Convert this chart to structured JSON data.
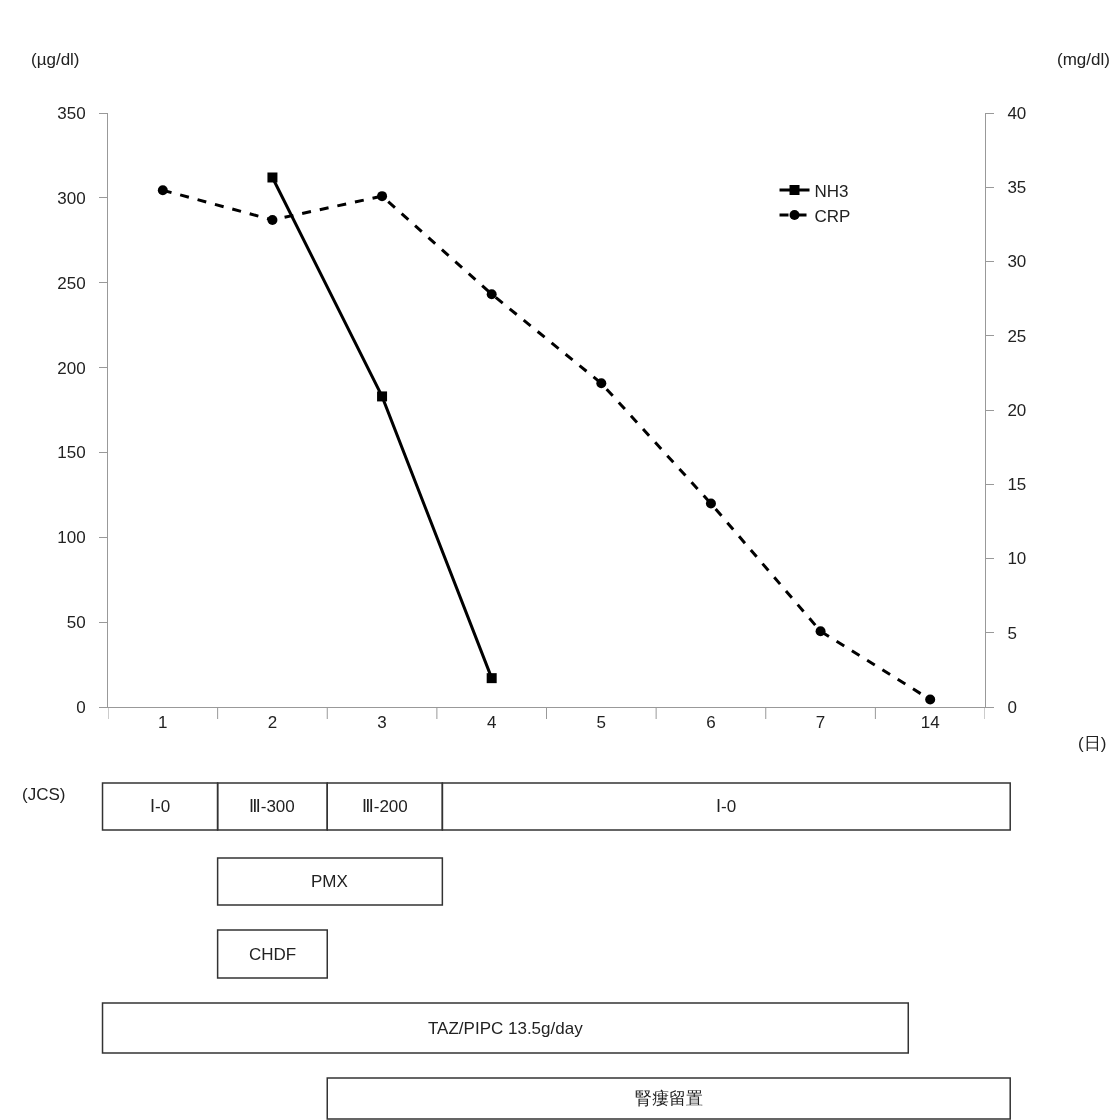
{
  "chart_data": {
    "type": "line",
    "ylabel": "(µg/dl)",
    "y2label": "(mg/dl)",
    "xlabel": "(日)",
    "categories": [
      "1",
      "2",
      "3",
      "4",
      "5",
      "6",
      "7",
      "14"
    ],
    "series": [
      {
        "name": "NH3",
        "color": "#000000",
        "marker": "square",
        "line_style": "solid",
        "values": [
          null,
          312,
          183,
          17,
          null,
          null,
          null,
          null
        ]
      },
      {
        "name": "CRP",
        "color": "#000000",
        "marker": "circle",
        "line_style": "dashed",
        "axis": "y2",
        "values": [
          34.8,
          32.8,
          34.4,
          27.8,
          21.8,
          13.7,
          5.1,
          0.5
        ]
      }
    ],
    "ylim": [
      0,
      350
    ],
    "yticks": [
      0,
      50,
      100,
      150,
      200,
      250,
      300,
      350
    ],
    "y2lim": [
      0,
      40
    ],
    "y2ticks": [
      0,
      5,
      10,
      15,
      20,
      25,
      30,
      35,
      40
    ],
    "grid": false,
    "legend": "top right",
    "annotations": [
      "(JCS)",
      "Ⅰ-0",
      "Ⅲ-300",
      "Ⅲ-200",
      "Ⅰ-0",
      "PMX",
      "CHDF",
      "TAZ/PIPC 13.5g/day",
      "腎瘻留置"
    ]
  }
}
